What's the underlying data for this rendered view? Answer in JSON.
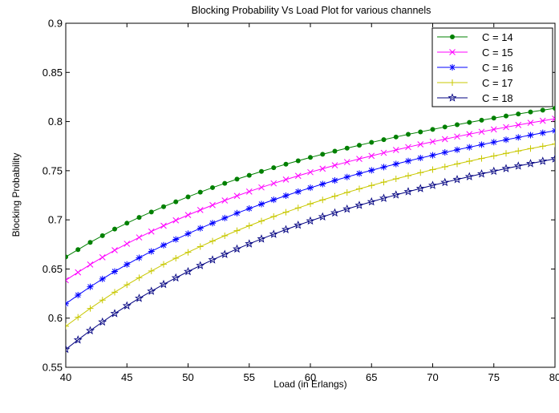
{
  "chart_data": {
    "type": "line",
    "title": "Blocking Probability Vs Load Plot for various channels",
    "xlabel": "Load (in Erlangs)",
    "ylabel": "Blocking Probability",
    "xlim": [
      40,
      80
    ],
    "ylim": [
      0.55,
      0.9
    ],
    "xticks": [
      "40",
      "45",
      "50",
      "55",
      "60",
      "65",
      "70",
      "75",
      "80"
    ],
    "yticks": [
      "0.55",
      "0.6",
      "0.65",
      "0.7",
      "0.75",
      "0.8",
      "0.85",
      "0.9"
    ],
    "grid": false,
    "legend_position": "top-right",
    "x": [
      40,
      41,
      42,
      43,
      44,
      45,
      46,
      47,
      48,
      49,
      50,
      51,
      52,
      53,
      54,
      55,
      56,
      57,
      58,
      59,
      60,
      61,
      62,
      63,
      64,
      65,
      66,
      67,
      68,
      69,
      70,
      71,
      72,
      73,
      74,
      75,
      76,
      77,
      78,
      79,
      80
    ],
    "series": [
      {
        "name": "C = 14",
        "color": "#008000",
        "marker": "dot",
        "values": [
          0.6623,
          0.6697,
          0.6771,
          0.6839,
          0.6906,
          0.6966,
          0.7025,
          0.708,
          0.7134,
          0.7184,
          0.7234,
          0.7282,
          0.7328,
          0.7371,
          0.7414,
          0.7453,
          0.7493,
          0.753,
          0.7566,
          0.7601,
          0.7635,
          0.7667,
          0.7699,
          0.7729,
          0.7759,
          0.7788,
          0.7816,
          0.7843,
          0.787,
          0.7895,
          0.792,
          0.7945,
          0.7968,
          0.7991,
          0.8014,
          0.8035,
          0.8057,
          0.8077,
          0.8097,
          0.8116,
          0.8135
        ]
      },
      {
        "name": "C = 15",
        "color": "#ff00ff",
        "marker": "x",
        "values": [
          0.6386,
          0.6466,
          0.6545,
          0.6619,
          0.6691,
          0.6757,
          0.6821,
          0.6881,
          0.694,
          0.6995,
          0.7049,
          0.71,
          0.715,
          0.7197,
          0.7244,
          0.7288,
          0.733,
          0.7371,
          0.741,
          0.7448,
          0.7485,
          0.752,
          0.7555,
          0.7588,
          0.762,
          0.7651,
          0.7682,
          0.7711,
          0.774,
          0.7768,
          0.7795,
          0.7821,
          0.7847,
          0.7872,
          0.7896,
          0.792,
          0.7943,
          0.7965,
          0.7987,
          0.8008,
          0.8029
        ]
      },
      {
        "name": "C = 16",
        "color": "#0000ff",
        "marker": "star",
        "values": [
          0.6147,
          0.6234,
          0.6319,
          0.6398,
          0.6475,
          0.6546,
          0.6614,
          0.6679,
          0.6742,
          0.6801,
          0.6859,
          0.6914,
          0.6967,
          0.7018,
          0.7068,
          0.7115,
          0.716,
          0.7204,
          0.7246,
          0.7287,
          0.7326,
          0.7364,
          0.7401,
          0.7436,
          0.7471,
          0.7504,
          0.7537,
          0.7568,
          0.7599,
          0.7629,
          0.7657,
          0.7686,
          0.7713,
          0.7739,
          0.7765,
          0.779,
          0.7815,
          0.7839,
          0.7862,
          0.7885,
          0.7907
        ]
      },
      {
        "name": "C = 17",
        "color": "#c8c800",
        "marker": "plus",
        "values": [
          0.5918,
          0.6009,
          0.6099,
          0.6183,
          0.6264,
          0.6339,
          0.6411,
          0.648,
          0.6547,
          0.661,
          0.667,
          0.6728,
          0.6784,
          0.6838,
          0.689,
          0.694,
          0.6988,
          0.7034,
          0.7078,
          0.7121,
          0.7163,
          0.7203,
          0.7241,
          0.7279,
          0.7315,
          0.735,
          0.7384,
          0.7417,
          0.7449,
          0.748,
          0.7511,
          0.754,
          0.7569,
          0.7597,
          0.7624,
          0.765,
          0.7676,
          0.7701,
          0.7725,
          0.7749,
          0.7772
        ]
      },
      {
        "name": "C = 18",
        "color": "#000080",
        "marker": "pentagram",
        "values": [
          0.5683,
          0.5779,
          0.5873,
          0.5961,
          0.6047,
          0.6126,
          0.6202,
          0.6274,
          0.6344,
          0.641,
          0.6474,
          0.6535,
          0.6593,
          0.6649,
          0.6704,
          0.6756,
          0.6806,
          0.6854,
          0.6901,
          0.6946,
          0.6989,
          0.7031,
          0.7071,
          0.711,
          0.7148,
          0.7184,
          0.722,
          0.7254,
          0.7287,
          0.7319,
          0.7351,
          0.7381,
          0.7411,
          0.744,
          0.7468,
          0.7495,
          0.7522,
          0.7548,
          0.7573,
          0.7597,
          0.7621
        ]
      }
    ]
  }
}
